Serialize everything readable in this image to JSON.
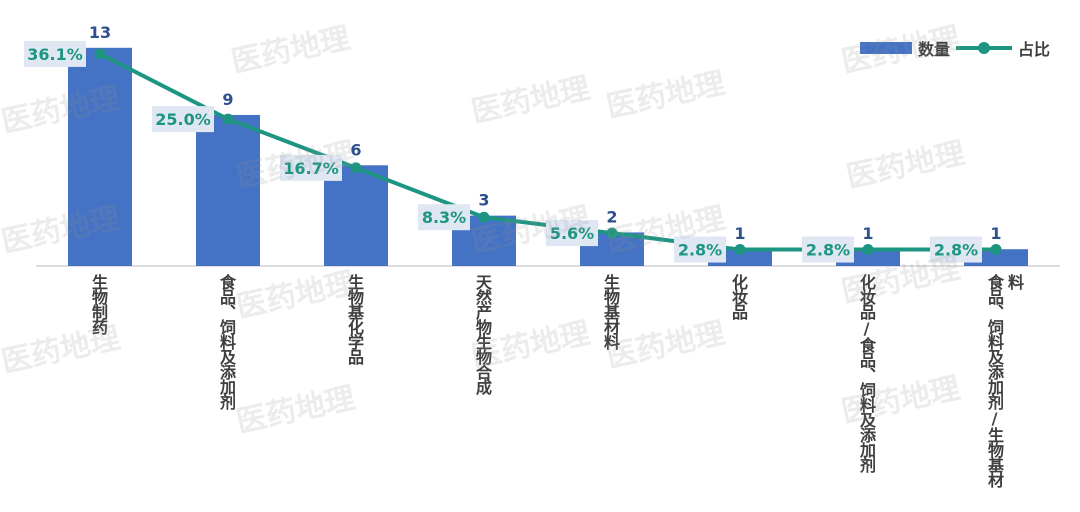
{
  "chart_data": {
    "type": "bar",
    "categories": [
      "生物制药",
      "食品、饲料及添加剂",
      "生物基化学品",
      "天然产物生物合成",
      "生物基材料",
      "化妆品",
      "化妆品/食品、饲料及添加剂",
      "食品、饲料及添加剂/生物基材料"
    ],
    "series": [
      {
        "name": "数量",
        "type": "bar",
        "values": [
          13,
          9,
          6,
          3,
          2,
          1,
          1,
          1
        ],
        "labels": [
          "13",
          "9",
          "6",
          "3",
          "2",
          "1",
          "1",
          "1"
        ],
        "color": "#4472c4"
      },
      {
        "name": "占比",
        "type": "line",
        "values": [
          36.1,
          25.0,
          16.7,
          8.3,
          5.6,
          2.8,
          2.8,
          2.8
        ],
        "labels": [
          "36.1%",
          "25.0%",
          "16.7%",
          "8.3%",
          "5.6%",
          "2.8%",
          "2.8%",
          "2.8%"
        ],
        "color": "#1e9582"
      }
    ],
    "ylim": [
      0,
      14
    ],
    "y2lim": [
      0,
      40
    ],
    "legend": "top-right",
    "grid": false
  },
  "watermark": "医药地理"
}
